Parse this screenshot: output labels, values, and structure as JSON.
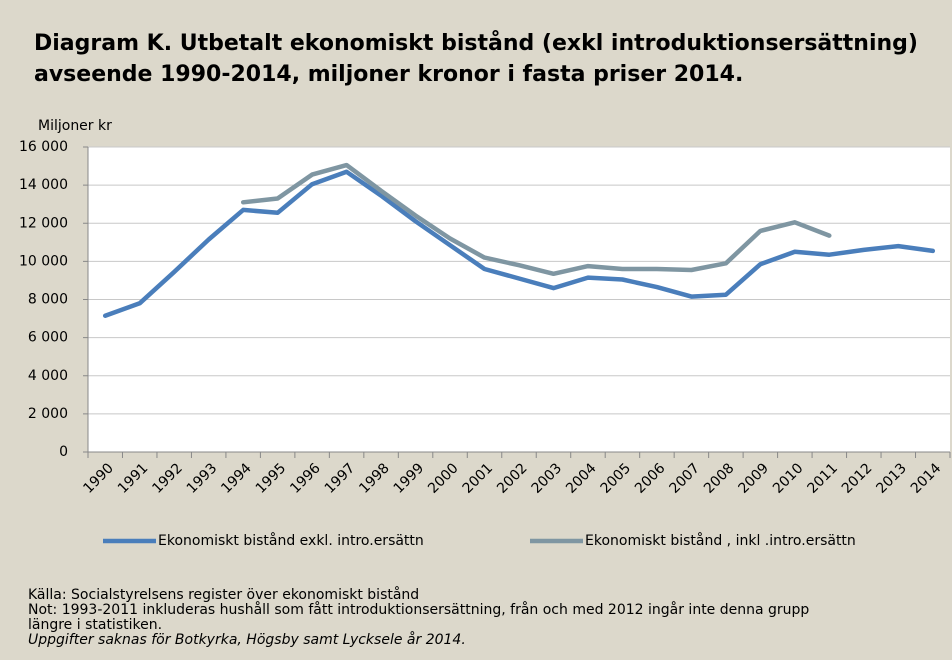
{
  "chart_data": {
    "type": "line",
    "title": "Diagram K. Utbetalt ekonomiskt bistånd (exkl introduktionsersättning) avseende 1990-2014, miljoner kronor i fasta priser 2014.",
    "y_axis_label": "Miljoner kr",
    "categories": [
      "1990",
      "1991",
      "1992",
      "1993",
      "1994",
      "1995",
      "1996",
      "1997",
      "1998",
      "1999",
      "2000",
      "2001",
      "2002",
      "2003",
      "2004",
      "2005",
      "2006",
      "2007",
      "2008",
      "2009",
      "2010",
      "2011",
      "2012",
      "2013",
      "2014"
    ],
    "series": [
      {
        "name": "Ekonomiskt bistånd exkl. intro.ersättn",
        "color": "#4a7ebb",
        "values": [
          7150,
          7800,
          9450,
          11150,
          12700,
          12550,
          14050,
          14700,
          13450,
          12100,
          10850,
          9600,
          9100,
          8600,
          9150,
          9050,
          8650,
          8150,
          8250,
          9850,
          10500,
          10350,
          10600,
          10800,
          10550
        ]
      },
      {
        "name": "Ekonomiskt bistånd , inkl .intro.ersättn",
        "color": "#7f96a2",
        "values": [
          null,
          null,
          null,
          null,
          13100,
          13300,
          14550,
          15050,
          13700,
          12400,
          11200,
          10200,
          9800,
          9350,
          9750,
          9600,
          9600,
          9550,
          9900,
          11600,
          12050,
          11350,
          null,
          null,
          null
        ]
      }
    ],
    "ylim": [
      0,
      16000
    ],
    "yticks": [
      0,
      {
        "value": 2000,
        "label": "2 000"
      },
      {
        "value": 4000,
        "label": "4 000"
      },
      {
        "value": 6000,
        "label": "6 000"
      },
      {
        "value": 8000,
        "label": "8 000"
      },
      {
        "value": 10000,
        "label": "10 000"
      },
      {
        "value": 12000,
        "label": "12 000"
      },
      {
        "value": 14000,
        "label": "14 000"
      },
      {
        "value": 16000,
        "label": "16 000"
      }
    ],
    "grid": true,
    "legend": "bottom",
    "source": "Källa: Socialstyrelsens register över ekonomiskt bistånd",
    "note": "Not: 1993-2011 inkluderas hushåll som fått introduktionsersättning, från och med 2012 ingår inte denna grupp längre i statistiken.",
    "footnote": "Uppgifter saknas för Botkyrka, Högsby samt Lycksele år 2014."
  }
}
